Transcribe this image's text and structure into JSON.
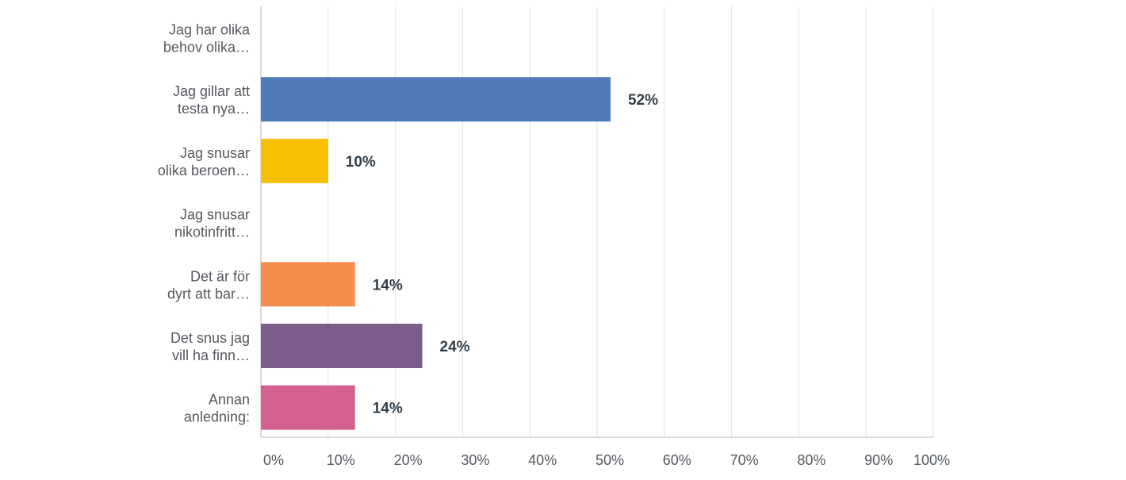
{
  "chart_data": {
    "type": "bar",
    "orientation": "horizontal",
    "categories": [
      [
        "Jag har olika",
        "behov olika…"
      ],
      [
        "Jag gillar att",
        "testa nya…"
      ],
      [
        "Jag snusar",
        "olika beroen…"
      ],
      [
        "Jag snusar",
        "nikotinfritt…"
      ],
      [
        "Det är för",
        "dyrt att bar…"
      ],
      [
        "Det snus jag",
        "vill ha finn…"
      ],
      [
        "Annan",
        "anledning:"
      ]
    ],
    "values": [
      null,
      52,
      10,
      null,
      14,
      24,
      14
    ],
    "value_labels": [
      "",
      "52%",
      "10%",
      "",
      "14%",
      "24%",
      "14%"
    ],
    "colors": [
      "#4f7bb7",
      "#4f7bb7",
      "#f6bf00",
      "#54b9c8",
      "#f68d4f",
      "#7c5c8d",
      "#d36090"
    ],
    "xlim": [
      0,
      100
    ],
    "x_ticks": [
      "0%",
      "10%",
      "20%",
      "30%",
      "40%",
      "50%",
      "60%",
      "70%",
      "80%",
      "90%",
      "100%"
    ],
    "grid": true,
    "title": "",
    "xlabel": "",
    "ylabel": ""
  }
}
